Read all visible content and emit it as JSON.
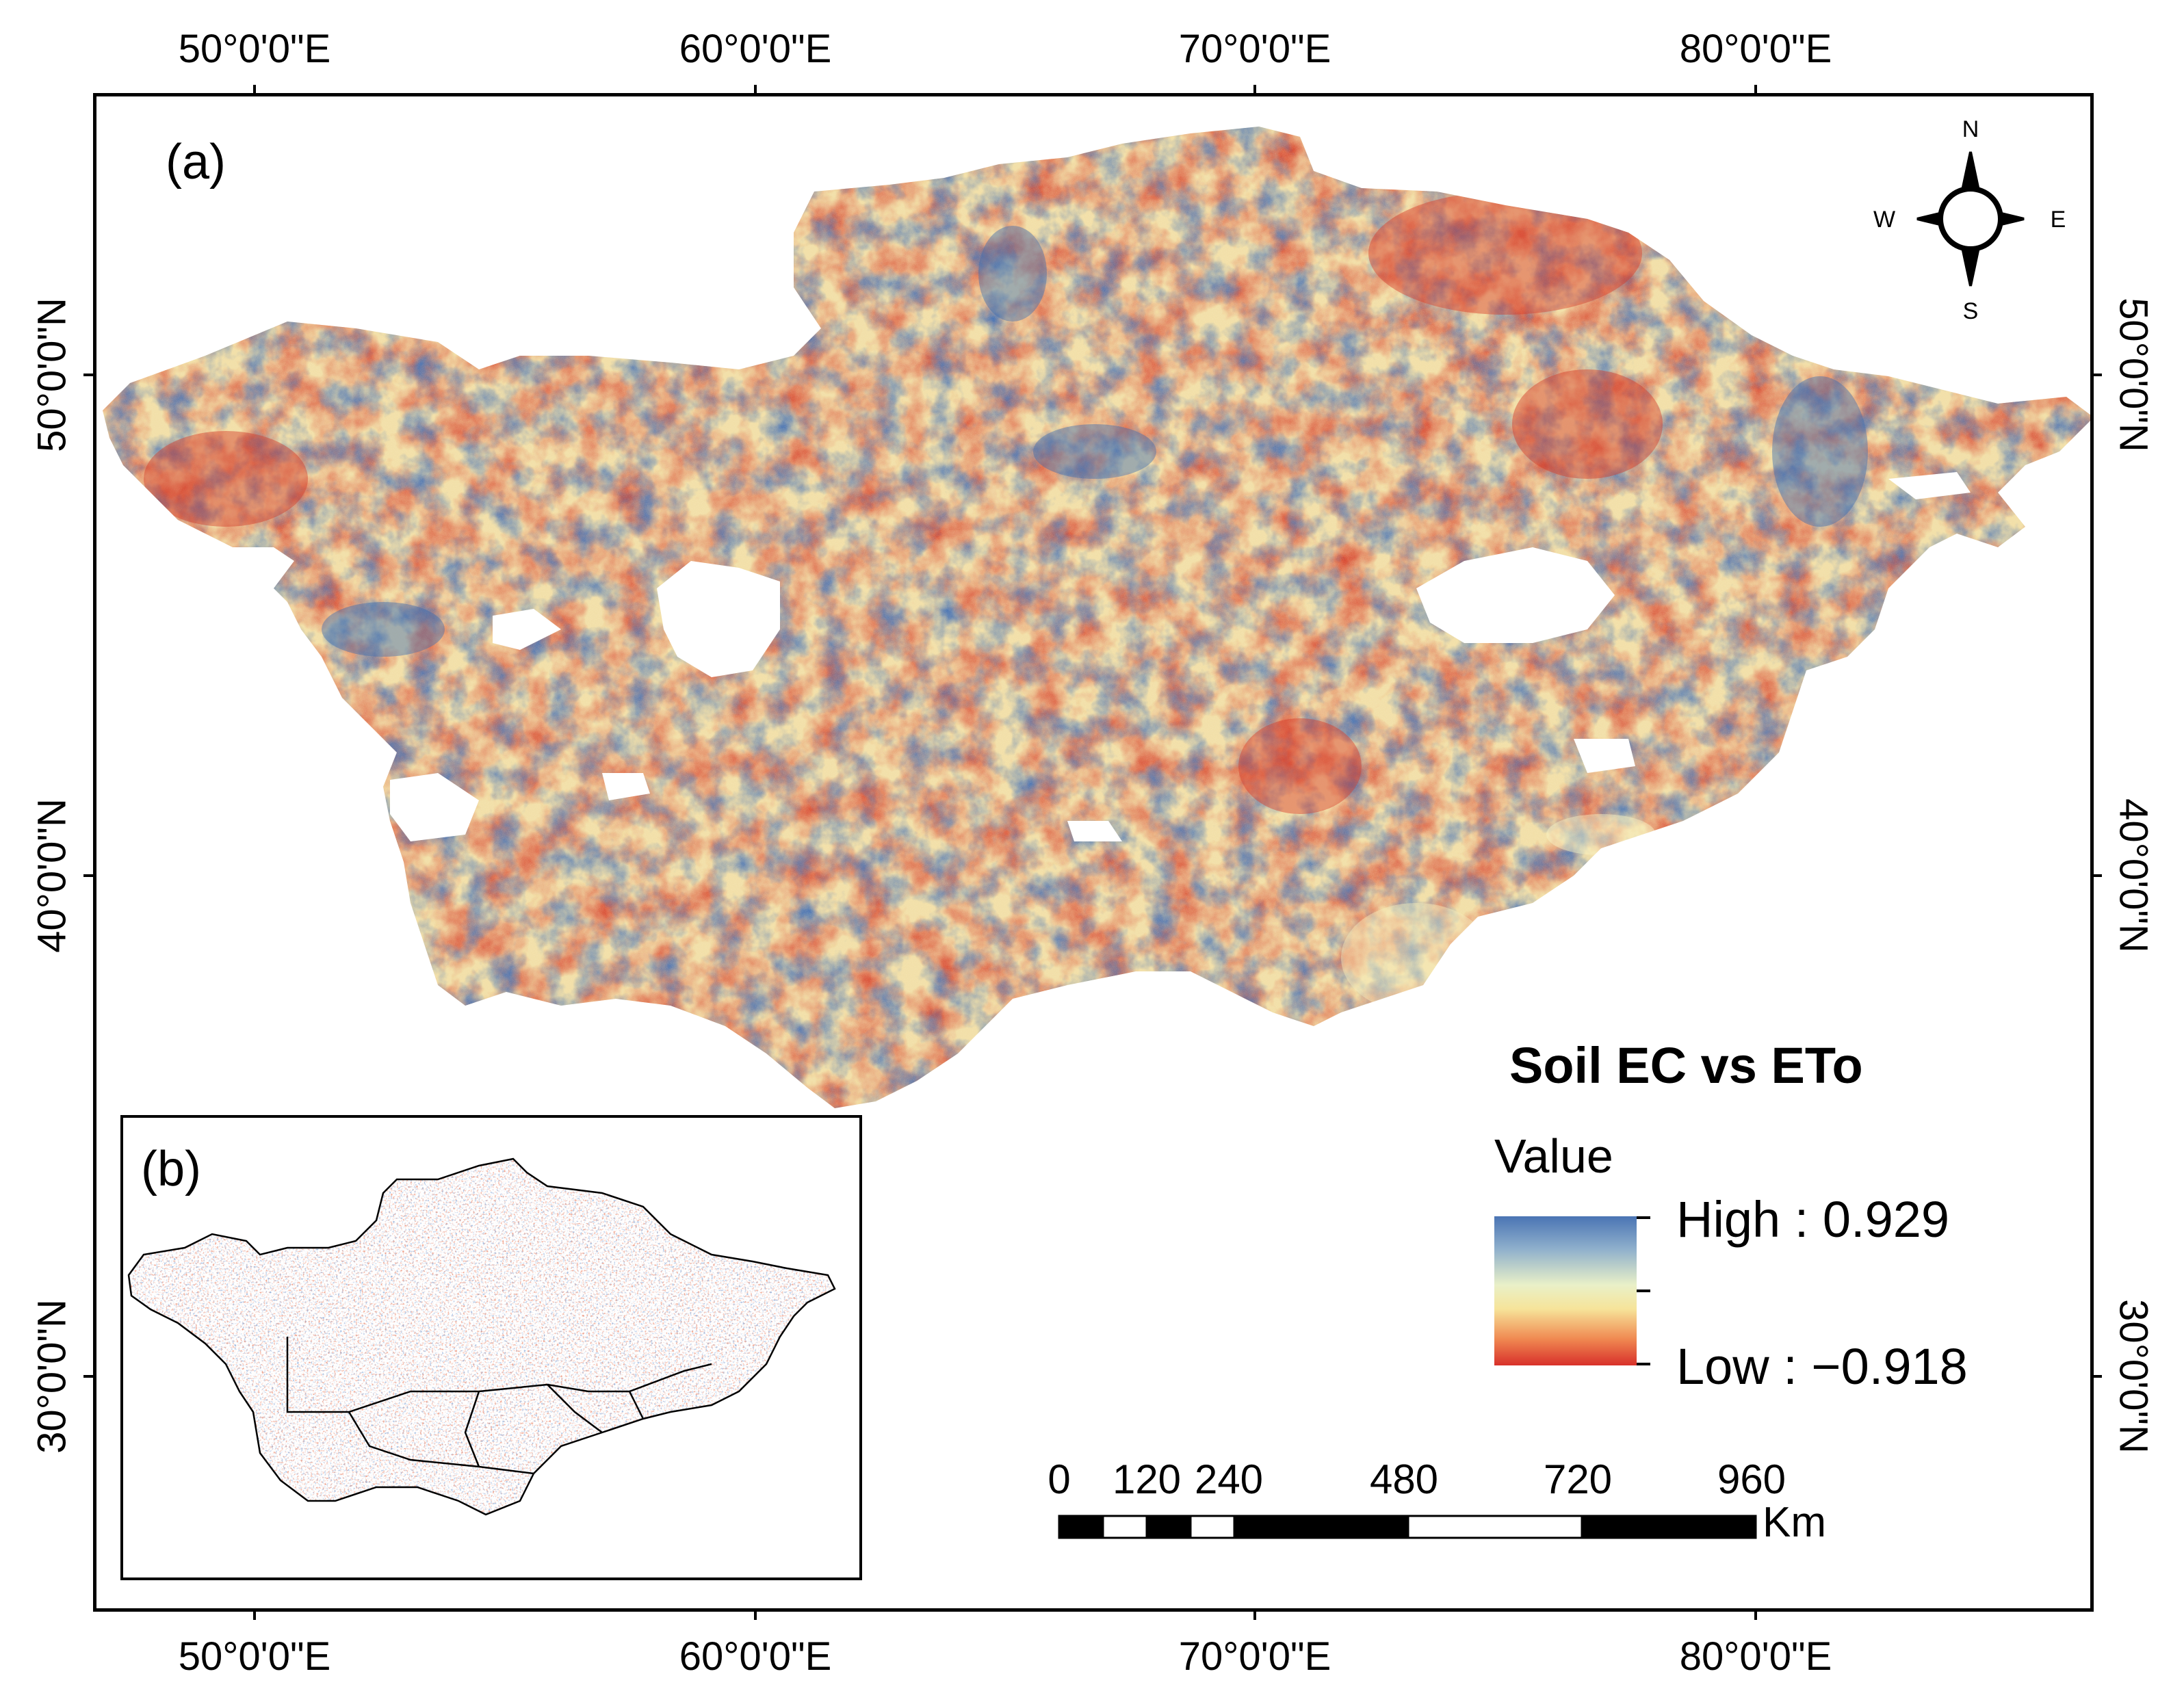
{
  "graticule": {
    "top_ticks": [
      "50°0'0\"E",
      "60°0'0\"E",
      "70°0'0\"E",
      "80°0'0\"E"
    ],
    "bottom_ticks": [
      "50°0'0\"E",
      "60°0'0\"E",
      "70°0'0\"E",
      "80°0'0\"E"
    ],
    "left_ticks": [
      "50°0'0\"N",
      "40°0'0\"N",
      "30°0'0\"N"
    ],
    "right_ticks": [
      "50°0'0\"N",
      "40°0'0\"N",
      "30°0'0\"N"
    ]
  },
  "panels": {
    "main_label": "(a)",
    "inset_label": "(b)"
  },
  "north_arrow": {
    "n": "N",
    "s": "S",
    "e": "E",
    "w": "W",
    "icon": "compass-rose-icon"
  },
  "legend": {
    "title": "Soil EC vs ETo",
    "value_heading": "Value",
    "high_label": "High : 0.929",
    "low_label": "Low : −0.918",
    "colors": {
      "high": "#4a74b4",
      "mid": "#f6f1c4",
      "low": "#d8302a"
    }
  },
  "scale_bar": {
    "labels": [
      "0",
      "120",
      "240",
      "480",
      "720",
      "960"
    ],
    "unit": "Km"
  },
  "colors": {
    "positive": "#4a74b4",
    "neutral": "#f4eec0",
    "negative": "#d8452e",
    "no_data": "#ffffff"
  }
}
